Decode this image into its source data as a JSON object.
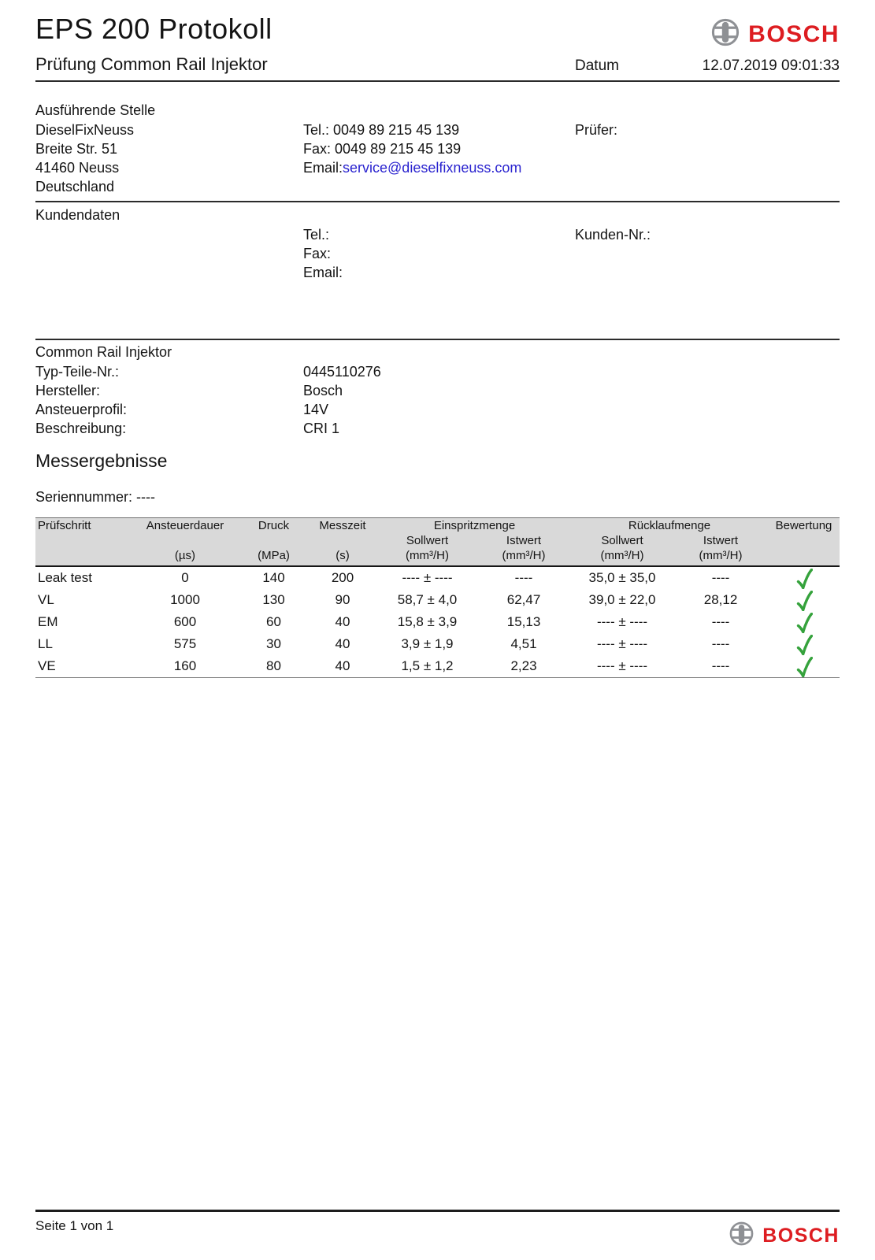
{
  "meta": {
    "title": "EPS 200 Protokoll",
    "subtitle": "Prüfung Common Rail Injektor",
    "date_label": "Datum",
    "date_value": "12.07.2019 09:01:33"
  },
  "brand": {
    "name": "BOSCH",
    "red": "#dd1d21",
    "logo_gray": "#8e9094"
  },
  "icons": {
    "brand_logo": "bosch-armature-circle",
    "bewertung_pass": "green-check"
  },
  "stelle": {
    "heading": "Ausführende Stelle",
    "address_lines": [
      "DieselFixNeuss",
      "Breite Str. 51",
      "41460 Neuss",
      "Deutschland"
    ],
    "tel_label": "Tel.:",
    "tel_value": "0049 89 215 45 139",
    "fax_label": "Fax:",
    "fax_value": "0049 89 215 45 139",
    "email_label": "Email:",
    "email_value": "service@dieselfixneuss.com",
    "pruefer_label": "Prüfer:"
  },
  "kunden": {
    "heading": "Kundendaten",
    "tel_label": "Tel.:",
    "fax_label": "Fax:",
    "email_label": "Email:",
    "nr_label": "Kunden-Nr.:"
  },
  "injektor": {
    "heading": "Common Rail Injektor",
    "rows": [
      {
        "label": "Typ-Teile-Nr.:",
        "value": "0445110276"
      },
      {
        "label": "Hersteller:",
        "value": "Bosch"
      },
      {
        "label": "Ansteuerprofil:",
        "value": "14V"
      },
      {
        "label": "Beschreibung:",
        "value": "CRI 1"
      }
    ]
  },
  "results": {
    "heading": "Messergebnisse",
    "serial_line": "Seriennummer: ----"
  },
  "table": {
    "header": {
      "prufschritt": "Prüfschritt",
      "ansteuerdauer": "Ansteuerdauer",
      "druck": "Druck",
      "messzeit": "Messzeit",
      "einspritzmenge": "Einspritzmenge",
      "rucklaufmenge": "Rücklaufmenge",
      "bewertung": "Bewertung",
      "sollwert": "Sollwert",
      "istwert": "Istwert",
      "unit_us": "(µs)",
      "unit_mpa": "(MPa)",
      "unit_s": "(s)",
      "unit_mm3h": "(mm³/H)"
    },
    "check_glyph": "✓",
    "check_color": "#35a23c",
    "rows": [
      {
        "step": "Leak test",
        "ansteuerdauer": "0",
        "druck": "140",
        "messzeit": "200",
        "e_soll": "---- ± ----",
        "e_ist": "----",
        "r_soll": "35,0 ± 35,0",
        "r_ist": "----",
        "ok": true
      },
      {
        "step": "VL",
        "ansteuerdauer": "1000",
        "druck": "130",
        "messzeit": "90",
        "e_soll": "58,7 ± 4,0",
        "e_ist": "62,47",
        "r_soll": "39,0 ± 22,0",
        "r_ist": "28,12",
        "ok": true
      },
      {
        "step": "EM",
        "ansteuerdauer": "600",
        "druck": "60",
        "messzeit": "40",
        "e_soll": "15,8 ± 3,9",
        "e_ist": "15,13",
        "r_soll": "---- ± ----",
        "r_ist": "----",
        "ok": true
      },
      {
        "step": "LL",
        "ansteuerdauer": "575",
        "druck": "30",
        "messzeit": "40",
        "e_soll": "3,9 ± 1,9",
        "e_ist": "4,51",
        "r_soll": "---- ± ----",
        "r_ist": "----",
        "ok": true
      },
      {
        "step": "VE",
        "ansteuerdauer": "160",
        "druck": "80",
        "messzeit": "40",
        "e_soll": "1,5 ± 1,2",
        "e_ist": "2,23",
        "r_soll": "---- ± ----",
        "r_ist": "----",
        "ok": true
      }
    ]
  },
  "footer": {
    "page_label": "Seite 1 von 1"
  }
}
